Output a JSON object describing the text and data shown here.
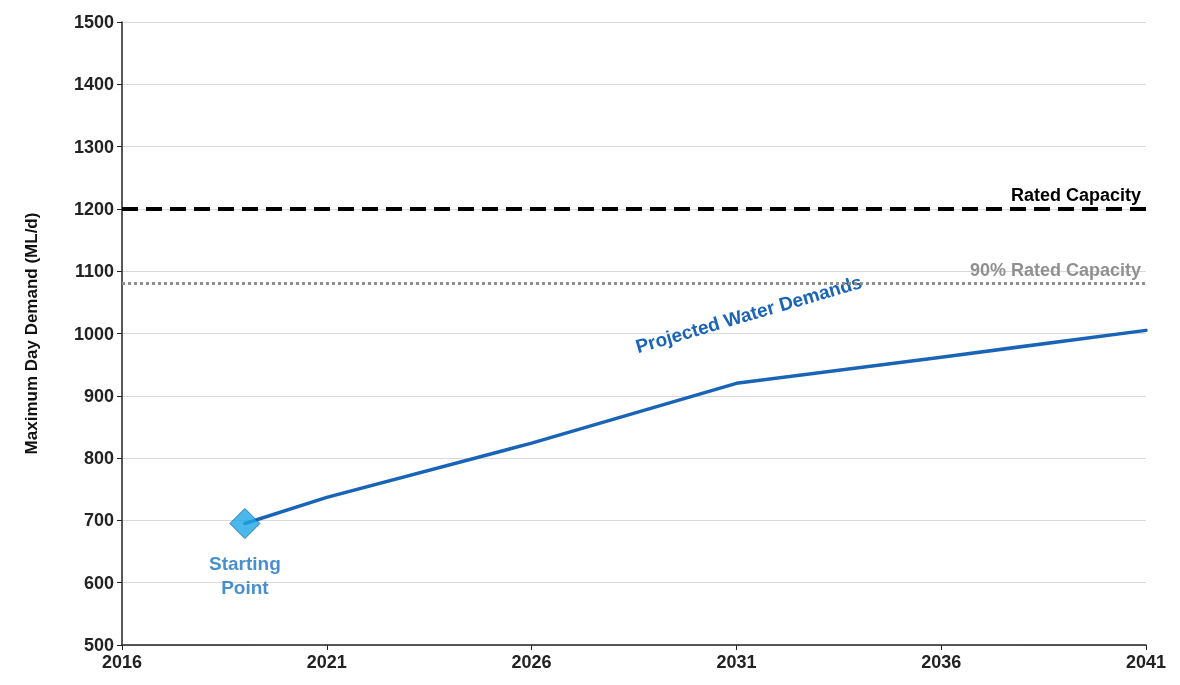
{
  "chart_data": {
    "type": "line",
    "ylabel": "Maximum Day Demand (ML/d)",
    "xlim": [
      2016,
      2041
    ],
    "xticks": [
      2016,
      2021,
      2026,
      2031,
      2036,
      2041
    ],
    "ylim": [
      500,
      1500
    ],
    "yticks": [
      500,
      600,
      700,
      800,
      900,
      1000,
      1100,
      1200,
      1300,
      1400,
      1500
    ],
    "grid": "y",
    "legend": false,
    "series": [
      {
        "name": "Projected Water Demands",
        "color": "#1a64b8",
        "marker": "none",
        "line_style": "solid",
        "x": [
          2019,
          2021,
          2026,
          2031,
          2036,
          2041
        ],
        "values": [
          695,
          737,
          824,
          920,
          962,
          1005
        ]
      },
      {
        "name": "Starting Point",
        "type": "scatter",
        "color": "#1ea6e6",
        "marker": "diamond",
        "x": [
          2019
        ],
        "values": [
          695
        ]
      }
    ],
    "ref_lines": [
      {
        "axis": "y",
        "value": 1200,
        "label": "Rated Capacity",
        "color": "#000000",
        "line_style": "dashed"
      },
      {
        "axis": "y",
        "value": 1080,
        "label": "90% Rated Capacity",
        "color": "#909090",
        "line_style": "dotted"
      }
    ]
  }
}
